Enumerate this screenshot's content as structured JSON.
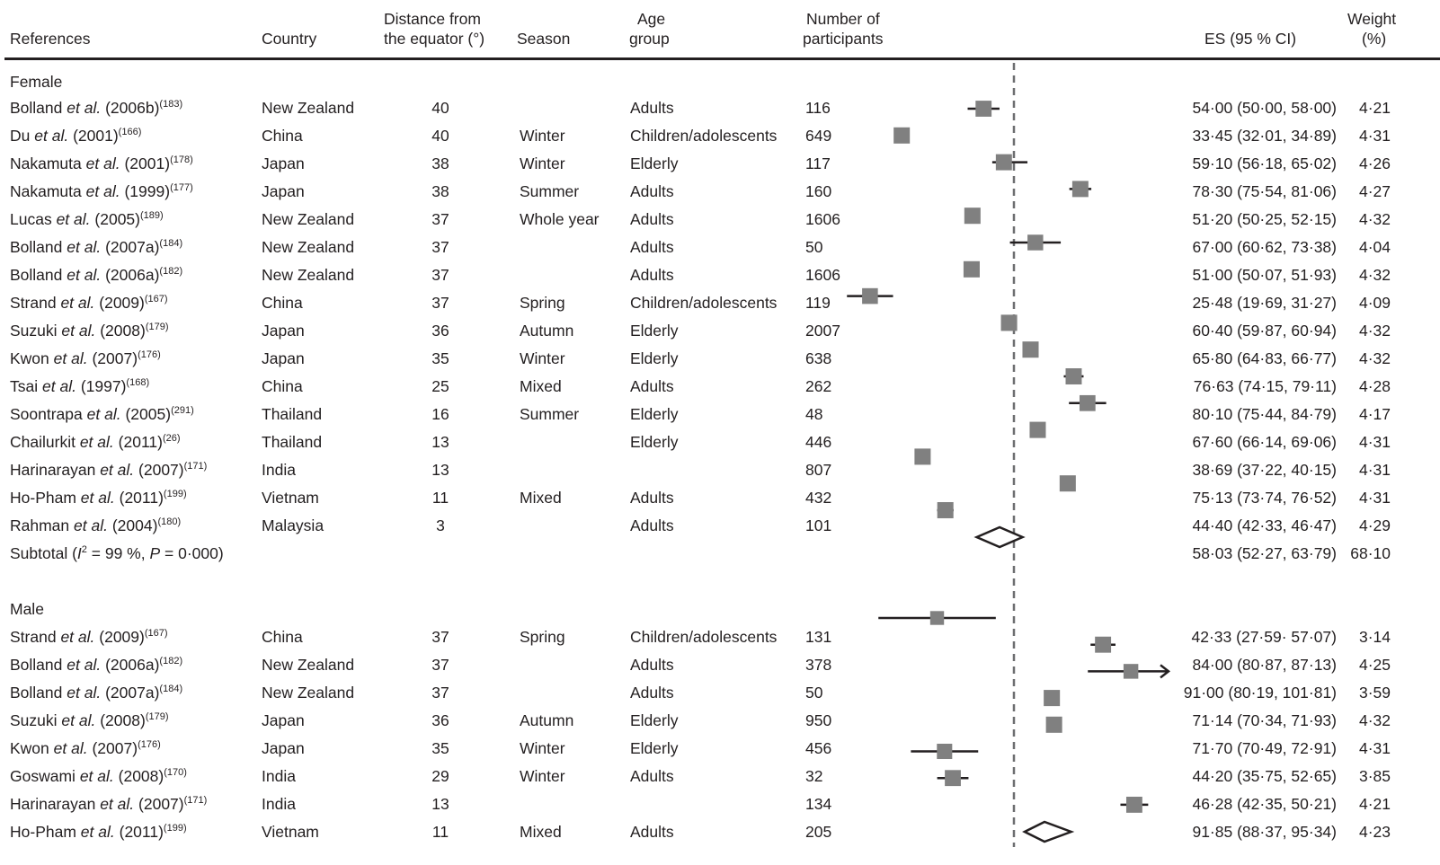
{
  "header": {
    "references": "References",
    "country": "Country",
    "distance": [
      "Distance from",
      "the equator (°)"
    ],
    "season": "Season",
    "age": [
      "Age",
      "group"
    ],
    "n": [
      "Number of",
      "participants"
    ],
    "es": "ES (95 % CI)",
    "weight": [
      "Weight",
      "(%)"
    ]
  },
  "chart_data": {
    "type": "forest",
    "reference_line": 61.6,
    "marker_color": "#808080",
    "groups": [
      {
        "label": "Female",
        "subtotal": {
          "label_pre": "Subtotal (",
          "i2": "I",
          "i2_sup": "2",
          "label_mid": " = 99 %, ",
          "p": "P",
          "label_post": " = 0·000)",
          "es_text": "58·03 (52·27, 63·79)",
          "weight_text": "68·10",
          "es": 58.03,
          "lo": 52.27,
          "hi": 63.79
        },
        "studies": [
          {
            "author": "Bolland",
            "etal": "et al.",
            "year": "(2006b)",
            "ref": "(183)",
            "country": "New Zealand",
            "distance": "40",
            "season": "",
            "age": "Adults",
            "n": "116",
            "es_text": "54·00 (50·00, 58·00)",
            "weight_text": "4·21",
            "es": 54.0,
            "lo": 50.0,
            "hi": 58.0,
            "weight": 4.21
          },
          {
            "author": "Du",
            "etal": "et al.",
            "year": "(2001)",
            "ref": "(166)",
            "country": "China",
            "distance": "40",
            "season": "Winter",
            "age": "Children/adolescents",
            "n": "649",
            "es_text": "33·45 (32·01, 34·89)",
            "weight_text": "4·31",
            "es": 33.45,
            "lo": 32.01,
            "hi": 34.89,
            "weight": 4.31
          },
          {
            "author": "Nakamuta",
            "etal": "et al.",
            "year": "(2001)",
            "ref": "(178)",
            "country": "Japan",
            "distance": "38",
            "season": "Winter",
            "age": "Elderly",
            "n": "117",
            "es_text": "59·10 (56·18, 65·02)",
            "weight_text": "4·26",
            "es": 59.1,
            "lo": 56.18,
            "hi": 65.02,
            "weight": 4.26
          },
          {
            "author": "Nakamuta",
            "etal": "et al.",
            "year": "(1999)",
            "ref": "(177)",
            "country": "Japan",
            "distance": "38",
            "season": "Summer",
            "age": "Adults",
            "n": "160",
            "es_text": "78·30 (75·54, 81·06)",
            "weight_text": "4·27",
            "es": 78.3,
            "lo": 75.54,
            "hi": 81.06,
            "weight": 4.27
          },
          {
            "author": "Lucas",
            "etal": "et al.",
            "year": "(2005)",
            "ref": "(189)",
            "country": "New Zealand",
            "distance": "37",
            "season": "Whole year",
            "age": "Adults",
            "n": "1606",
            "es_text": "51·20 (50·25, 52·15)",
            "weight_text": "4·32",
            "es": 51.2,
            "lo": 50.25,
            "hi": 52.15,
            "weight": 4.32
          },
          {
            "author": "Bolland",
            "etal": "et al.",
            "year": "(2007a)",
            "ref": "(184)",
            "country": "New Zealand",
            "distance": "37",
            "season": "",
            "age": "Adults",
            "n": "50",
            "es_text": "67·00 (60·62, 73·38)",
            "weight_text": "4·04",
            "es": 67.0,
            "lo": 60.62,
            "hi": 73.38,
            "weight": 4.04
          },
          {
            "author": "Bolland",
            "etal": "et al.",
            "year": "(2006a)",
            "ref": "(182)",
            "country": "New Zealand",
            "distance": "37",
            "season": "",
            "age": "Adults",
            "n": "1606",
            "es_text": "51·00 (50·07, 51·93)",
            "weight_text": "4·32",
            "es": 51.0,
            "lo": 50.07,
            "hi": 51.93,
            "weight": 4.32
          },
          {
            "author": "Strand",
            "etal": "et al.",
            "year": "(2009)",
            "ref": "(167)",
            "country": "China",
            "distance": "37",
            "season": "Spring",
            "age": "Children/adolescents",
            "n": "119",
            "es_text": "25·48 (19·69, 31·27)",
            "weight_text": "4·09",
            "es": 25.48,
            "lo": 19.69,
            "hi": 31.27,
            "weight": 4.09
          },
          {
            "author": "Suzuki",
            "etal": "et al.",
            "year": "(2008)",
            "ref": "(179)",
            "country": "Japan",
            "distance": "36",
            "season": "Autumn",
            "age": "Elderly",
            "n": "2007",
            "es_text": "60·40 (59·87, 60·94)",
            "weight_text": "4·32",
            "es": 60.4,
            "lo": 59.87,
            "hi": 60.94,
            "weight": 4.32
          },
          {
            "author": "Kwon",
            "etal": "et al.",
            "year": "(2007)",
            "ref": "(176)",
            "country": "Japan",
            "distance": "35",
            "season": "Winter",
            "age": "Elderly",
            "n": "638",
            "es_text": "65·80 (64·83, 66·77)",
            "weight_text": "4·32",
            "es": 65.8,
            "lo": 64.83,
            "hi": 66.77,
            "weight": 4.32
          },
          {
            "author": "Tsai",
            "etal": "et al.",
            "year": "(1997)",
            "ref": "(168)",
            "country": "China",
            "distance": "25",
            "season": "Mixed",
            "age": "Adults",
            "n": "262",
            "es_text": "76·63 (74·15, 79·11)",
            "weight_text": "4·28",
            "es": 76.63,
            "lo": 74.15,
            "hi": 79.11,
            "weight": 4.28
          },
          {
            "author": "Soontrapa",
            "etal": "et al.",
            "year": "(2005)",
            "ref": "(291)",
            "country": "Thailand",
            "distance": "16",
            "season": "Summer",
            "age": "Elderly",
            "n": "48",
            "es_text": "80·10 (75·44, 84·79)",
            "weight_text": "4·17",
            "es": 80.1,
            "lo": 75.44,
            "hi": 84.79,
            "weight": 4.17
          },
          {
            "author": "Chailurkit",
            "etal": "et al.",
            "year": "(2011)",
            "ref": "(26)",
            "country": "Thailand",
            "distance": "13",
            "season": "",
            "age": "Elderly",
            "n": "446",
            "es_text": "67·60 (66·14, 69·06)",
            "weight_text": "4·31",
            "es": 67.6,
            "lo": 66.14,
            "hi": 69.06,
            "weight": 4.31
          },
          {
            "author": "Harinarayan",
            "etal": "et al.",
            "year": "(2007)",
            "ref": "(171)",
            "country": "India",
            "distance": "13",
            "season": "",
            "age": "",
            "n": "807",
            "es_text": "38·69 (37·22, 40·15)",
            "weight_text": "4·31",
            "es": 38.69,
            "lo": 37.22,
            "hi": 40.15,
            "weight": 4.31
          },
          {
            "author": "Ho-Pham",
            "etal": "et al.",
            "year": "(2011)",
            "ref": "(199)",
            "country": "Vietnam",
            "distance": "11",
            "season": "Mixed",
            "age": "Adults",
            "n": "432",
            "es_text": "75·13 (73·74, 76·52)",
            "weight_text": "4·31",
            "es": 75.13,
            "lo": 73.74,
            "hi": 76.52,
            "weight": 4.31
          },
          {
            "author": "Rahman",
            "etal": "et al.",
            "year": "(2004)",
            "ref": "(180)",
            "country": "Malaysia",
            "distance": "3",
            "season": "",
            "age": "Adults",
            "n": "101",
            "es_text": "44·40 (42·33, 46·47)",
            "weight_text": "4·29",
            "es": 44.4,
            "lo": 42.33,
            "hi": 46.47,
            "weight": 4.29
          }
        ]
      },
      {
        "label": "Male",
        "subtotal_marker_estimate": {
          "es": 69.3,
          "lo": 64.3,
          "hi": 76.0
        },
        "studies": [
          {
            "author": "Strand",
            "etal": "et al.",
            "year": "(2009)",
            "ref": "(167)",
            "country": "China",
            "distance": "37",
            "season": "Spring",
            "age": "Children/adolescents",
            "n": "131",
            "es_text": "42·33 (27·59· 57·07)",
            "weight_text": "3·14",
            "es": 42.33,
            "lo": 27.59,
            "hi": 57.07,
            "weight": 3.14
          },
          {
            "author": "Bolland",
            "etal": "et al.",
            "year": "(2006a)",
            "ref": "(182)",
            "country": "New Zealand",
            "distance": "37",
            "season": "",
            "age": "Adults",
            "n": "378",
            "es_text": "84·00 (80·87, 87·13)",
            "weight_text": "4·25",
            "es": 84.0,
            "lo": 80.87,
            "hi": 87.13,
            "weight": 4.25
          },
          {
            "author": "Bolland",
            "etal": "et al.",
            "year": "(2007a)",
            "ref": "(184)",
            "country": "New Zealand",
            "distance": "37",
            "season": "",
            "age": "Adults",
            "n": "50",
            "es_text": "91·00 (80·19, 101·81)",
            "weight_text": "3·59",
            "es": 91.0,
            "lo": 80.19,
            "hi": 101.81,
            "weight": 3.59
          },
          {
            "author": "Suzuki",
            "etal": "et al.",
            "year": "(2008)",
            "ref": "(179)",
            "country": "Japan",
            "distance": "36",
            "season": "Autumn",
            "age": "Elderly",
            "n": "950",
            "es_text": "71·14 (70·34, 71·93)",
            "weight_text": "4·32",
            "es": 71.14,
            "lo": 70.34,
            "hi": 71.93,
            "weight": 4.32
          },
          {
            "author": "Kwon",
            "etal": "et al.",
            "year": "(2007)",
            "ref": "(176)",
            "country": "Japan",
            "distance": "35",
            "season": "Winter",
            "age": "Elderly",
            "n": "456",
            "es_text": "71·70 (70·49, 72·91)",
            "weight_text": "4·31",
            "es": 71.7,
            "lo": 70.49,
            "hi": 72.91,
            "weight": 4.31
          },
          {
            "author": "Goswami",
            "etal": "et al.",
            "year": "(2008)",
            "ref": "(170)",
            "country": "India",
            "distance": "29",
            "season": "Winter",
            "age": "Adults",
            "n": "32",
            "es_text": "44·20 (35·75, 52·65)",
            "weight_text": "3·85",
            "es": 44.2,
            "lo": 35.75,
            "hi": 52.65,
            "weight": 3.85
          },
          {
            "author": "Harinarayan",
            "etal": "et al.",
            "year": "(2007)",
            "ref": "(171)",
            "country": "India",
            "distance": "13",
            "season": "",
            "age": "",
            "n": "134",
            "es_text": "46·28 (42·35, 50·21)",
            "weight_text": "4·21",
            "es": 46.28,
            "lo": 42.35,
            "hi": 50.21,
            "weight": 4.21
          },
          {
            "author": "Ho-Pham",
            "etal": "et al.",
            "year": "(2011)",
            "ref": "(199)",
            "country": "Vietnam",
            "distance": "11",
            "season": "Mixed",
            "age": "Adults",
            "n": "205",
            "es_text": "91·85 (88·37, 95·34)",
            "weight_text": "4·23",
            "es": 91.85,
            "lo": 88.37,
            "hi": 95.34,
            "weight": 4.23
          }
        ]
      }
    ]
  }
}
